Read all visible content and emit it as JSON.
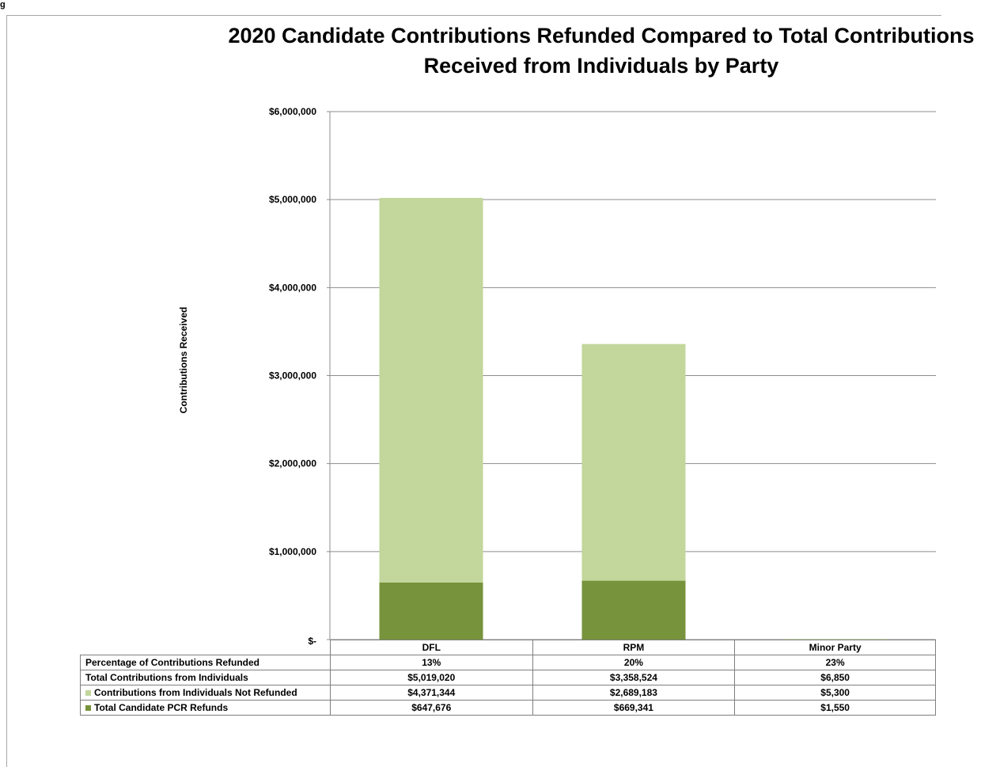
{
  "chart_data": {
    "type": "bar",
    "stacked": true,
    "title": "2020 Candidate Contributions Refunded Compared to Total Contributions Received from Individuals by Party",
    "ylabel": "Contributions Received",
    "xlabel": "",
    "categories": [
      "DFL",
      "RPM",
      "Minor Party"
    ],
    "ylim": [
      0,
      6000000
    ],
    "yticks": [
      0,
      1000000,
      2000000,
      3000000,
      4000000,
      5000000,
      6000000
    ],
    "ytick_labels": [
      "$-",
      "$1,000,000",
      "$2,000,000",
      "$3,000,000",
      "$4,000,000",
      "$5,000,000",
      "$6,000,000"
    ],
    "grid": true,
    "series": [
      {
        "name": "Total Candidate PCR Refunds",
        "values": [
          647676,
          669341,
          1550
        ],
        "color": "#77933c"
      },
      {
        "name": "Contributions from Individuals  Not Refunded",
        "values": [
          4371344,
          2689183,
          5300
        ],
        "color": "#c3d69b"
      }
    ],
    "table": {
      "rows": [
        {
          "label": "Percentage of Contributions Refunded",
          "values": [
            "13%",
            "20%",
            "23%"
          ]
        },
        {
          "label": "Total Contributions from Individuals",
          "values": [
            "$5,019,020",
            "$3,358,524",
            "$6,850"
          ]
        },
        {
          "label": "Contributions from Individuals  Not Refunded",
          "swatch": "#c3d69b",
          "values": [
            "$4,371,344",
            "$2,689,183",
            "$5,300"
          ]
        },
        {
          "label": "Total Candidate PCR Refunds",
          "swatch": "#77933c",
          "values": [
            "$647,676",
            "$669,341",
            "$1,550"
          ]
        }
      ]
    }
  },
  "page": {
    "corner_glyph": "g"
  }
}
